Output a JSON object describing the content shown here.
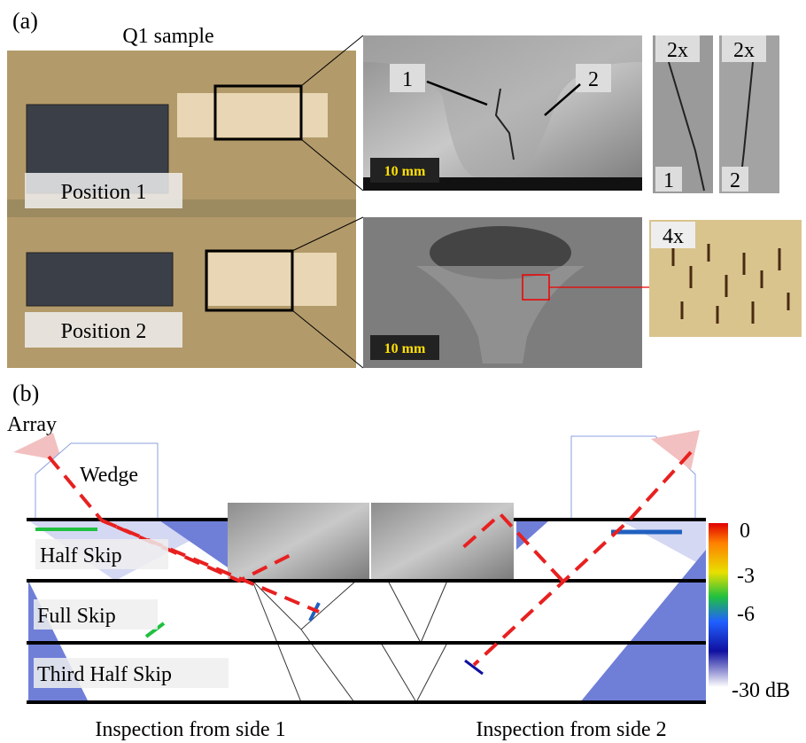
{
  "panel_a": {
    "label": "(a)",
    "sample_title": "Q1 sample",
    "positions": [
      "Position 1",
      "Position 2"
    ],
    "scale_labels": [
      "10 mm",
      "10 mm"
    ],
    "crack_labels": [
      "1",
      "2"
    ],
    "zoom_labels": [
      "2x",
      "2x",
      "4x"
    ],
    "zoom_crack_labels": [
      "1",
      "2"
    ]
  },
  "panel_b": {
    "label": "(b)",
    "array": "Array",
    "wedge": "Wedge",
    "skips": [
      "Half Skip",
      "Full Skip",
      "Third Half Skip"
    ],
    "colorbar_labels": [
      "0",
      "-3",
      "-6",
      "-30 dB"
    ],
    "captions": [
      "Inspection from side 1",
      "Inspection from side 2"
    ]
  }
}
